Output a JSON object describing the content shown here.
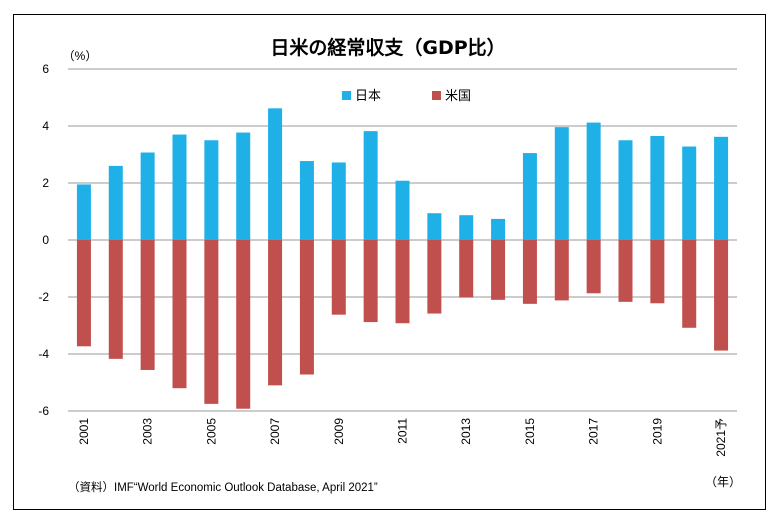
{
  "chart_data": {
    "type": "bar",
    "title": "日米の経常収支（GDP比）",
    "ylabel": "（%）",
    "xlabel_unit": "（年）",
    "source": "（資料）IMF“World Economic Outlook Database, April 2021”",
    "ylim": [
      -6,
      6
    ],
    "yticks": [
      6,
      4,
      2,
      0,
      -2,
      -4,
      -6
    ],
    "grid": true,
    "legend_position": "top-right",
    "categories": [
      "2001",
      "2002",
      "2003",
      "2004",
      "2005",
      "2006",
      "2007",
      "2008",
      "2009",
      "2010",
      "2011",
      "2012",
      "2013",
      "2014",
      "2015",
      "2016",
      "2017",
      "2018",
      "2019",
      "2020",
      "2021予"
    ],
    "tick_labels": [
      "2001",
      "",
      "2003",
      "",
      "2005",
      "",
      "2007",
      "",
      "2009",
      "",
      "2011",
      "",
      "2013",
      "",
      "2015",
      "",
      "2017",
      "",
      "2019",
      "",
      "2021予"
    ],
    "series": [
      {
        "name": "日本",
        "color": "#1fb0e8",
        "values": [
          1.95,
          2.6,
          3.07,
          3.7,
          3.5,
          3.77,
          4.62,
          2.77,
          2.72,
          3.82,
          2.08,
          0.94,
          0.87,
          0.74,
          3.05,
          3.96,
          4.12,
          3.5,
          3.65,
          3.28,
          3.62
        ]
      },
      {
        "name": "米国",
        "color": "#c0504d",
        "values": [
          -3.73,
          -4.17,
          -4.56,
          -5.2,
          -5.75,
          -5.92,
          -5.1,
          -4.72,
          -2.62,
          -2.88,
          -2.92,
          -2.58,
          -2.02,
          -2.1,
          -2.24,
          -2.12,
          -1.87,
          -2.17,
          -2.22,
          -3.08,
          -3.88
        ]
      }
    ]
  }
}
